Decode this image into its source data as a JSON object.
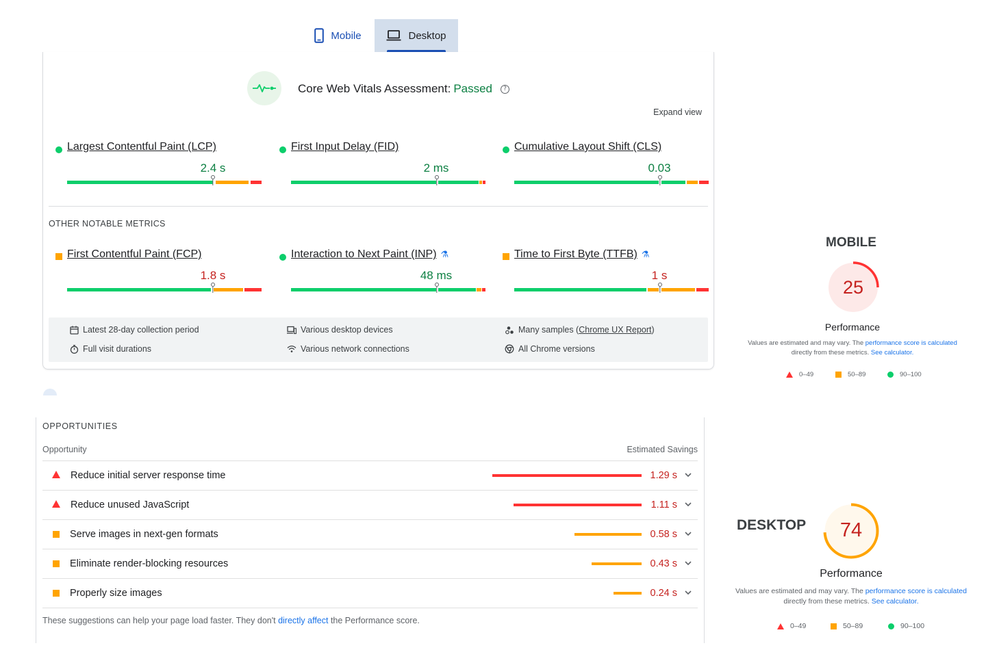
{
  "tabs": {
    "mobile_label": "Mobile",
    "desktop_label": "Desktop",
    "active": "Desktop"
  },
  "cwv": {
    "assessment_label": "Core Web Vitals Assessment:",
    "assessment_status": "Passed",
    "help_glyph": "?",
    "expand_label": "Expand view",
    "metrics": [
      {
        "label": "Largest Contentful Paint (LCP)",
        "value": "2.4 s",
        "status": "good"
      },
      {
        "label": "First Input Delay (FID)",
        "value": "2 ms",
        "status": "good"
      },
      {
        "label": "Cumulative Layout Shift (CLS)",
        "value": "0.03",
        "status": "good"
      }
    ],
    "other_title": "OTHER NOTABLE METRICS",
    "other_metrics": [
      {
        "label": "First Contentful Paint (FCP)",
        "value": "1.8 s",
        "status": "average",
        "experimental": false
      },
      {
        "label": "Interaction to Next Paint (INP)",
        "value": "48 ms",
        "status": "good",
        "experimental": true
      },
      {
        "label": "Time to First Byte (TTFB)",
        "value": "1 s",
        "status": "average",
        "experimental": true
      }
    ],
    "info": {
      "collection_period": "Latest 28-day collection period",
      "visit_durations": "Full visit durations",
      "devices": "Various desktop devices",
      "connections": "Various network connections",
      "samples_prefix": "Many samples (",
      "samples_link": "Chrome UX Report",
      "samples_suffix": ")",
      "versions": "All Chrome versions"
    }
  },
  "opportunities": {
    "title": "OPPORTUNITIES",
    "col_opportunity": "Opportunity",
    "col_savings": "Estimated Savings",
    "items": [
      {
        "label": "Reduce initial server response time",
        "savings": "1.29 s",
        "severity": "fail"
      },
      {
        "label": "Reduce unused JavaScript",
        "savings": "1.11 s",
        "severity": "fail"
      },
      {
        "label": "Serve images in next-gen formats",
        "savings": "0.58 s",
        "severity": "average"
      },
      {
        "label": "Eliminate render-blocking resources",
        "savings": "0.43 s",
        "severity": "average"
      },
      {
        "label": "Properly size images",
        "savings": "0.24 s",
        "severity": "average"
      }
    ],
    "footer_prefix": "These suggestions can help your page load faster. They don't ",
    "footer_link": "directly affect",
    "footer_suffix": " the Performance score."
  },
  "mobile_score": {
    "title": "MOBILE",
    "score": "25",
    "label": "Performance",
    "note_prefix": "Values are estimated and may vary. The ",
    "note_link1": "performance score is calculated",
    "note_middle": "directly from these metrics. ",
    "note_link2": "See calculator.",
    "legend": [
      "0–49",
      "50–89",
      "90–100"
    ]
  },
  "desktop_score": {
    "title": "DESKTOP",
    "score": "74",
    "label": "Performance",
    "note_prefix": "Values are estimated and may vary. The ",
    "note_link1": "performance score is calculated",
    "note_middle": "directly from these metrics. ",
    "note_link2": "See calculator.",
    "legend": [
      "0–49",
      "50–89",
      "90–100"
    ]
  },
  "colors": {
    "good": "#0cce6b",
    "average": "#ffa400",
    "fail": "#ff3333",
    "link": "#1a73e8"
  }
}
